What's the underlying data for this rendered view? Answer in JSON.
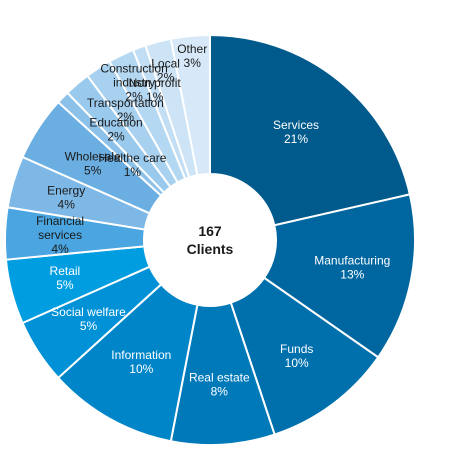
{
  "chart_data": {
    "type": "pie",
    "donut": true,
    "center_label": {
      "count": "167",
      "unit": "Clients"
    },
    "slices": [
      {
        "label": [
          "Services"
        ],
        "value": 21,
        "value_label": "21%",
        "color": "#005a8c",
        "text": "#ffffff"
      },
      {
        "label": [
          "Manufacturing"
        ],
        "value": 13,
        "value_label": "13%",
        "color": "#0066a0",
        "text": "#ffffff"
      },
      {
        "label": [
          "Funds"
        ],
        "value": 10,
        "value_label": "10%",
        "color": "#0070ad",
        "text": "#ffffff"
      },
      {
        "label": [
          "Real estate"
        ],
        "value": 8,
        "value_label": "8%",
        "color": "#0079b8",
        "text": "#ffffff"
      },
      {
        "label": [
          "Information"
        ],
        "value": 10,
        "value_label": "10%",
        "color": "#0085c8",
        "text": "#ffffff"
      },
      {
        "label": [
          "Social welfare"
        ],
        "value": 5,
        "value_label": "5%",
        "color": "#0091d6",
        "text": "#ffffff"
      },
      {
        "label": [
          "Retail"
        ],
        "value": 5,
        "value_label": "5%",
        "color": "#009ee0",
        "text": "#ffffff"
      },
      {
        "label": [
          "Financial",
          "services"
        ],
        "value": 4,
        "value_label": "4%",
        "color": "#4aa5e0",
        "text": "#1a1a1a"
      },
      {
        "label": [
          "Energy"
        ],
        "value": 4,
        "value_label": "4%",
        "color": "#7eb8e6",
        "text": "#1a1a1a"
      },
      {
        "label": [
          "Wholesale"
        ],
        "value": 5,
        "value_label": "5%",
        "color": "#6aaee2",
        "text": "#1a1a1a"
      },
      {
        "label": [
          "Healthe care"
        ],
        "value": 1,
        "value_label": "1%",
        "color": "#8cc2ea",
        "text": "#1a1a1a"
      },
      {
        "label": [
          "Education"
        ],
        "value": 2,
        "value_label": "2%",
        "color": "#99c9ec",
        "text": "#1a1a1a"
      },
      {
        "label": [
          "Transportation"
        ],
        "value": 2,
        "value_label": "2%",
        "color": "#a8d1f0",
        "text": "#1a1a1a"
      },
      {
        "label": [
          "Construction",
          "industry"
        ],
        "value": 2,
        "value_label": "2%",
        "color": "#b5d8f2",
        "text": "#1a1a1a"
      },
      {
        "label": [
          "Non profit"
        ],
        "value": 1,
        "value_label": "1%",
        "color": "#c2def4",
        "text": "#1a1a1a"
      },
      {
        "label": [
          "Local"
        ],
        "value": 2,
        "value_label": "2%",
        "color": "#cde4f6",
        "text": "#1a1a1a"
      },
      {
        "label": [
          "Other"
        ],
        "value": 3,
        "value_label": "3%",
        "color": "#d7e9f8",
        "text": "#1a1a1a"
      }
    ]
  }
}
